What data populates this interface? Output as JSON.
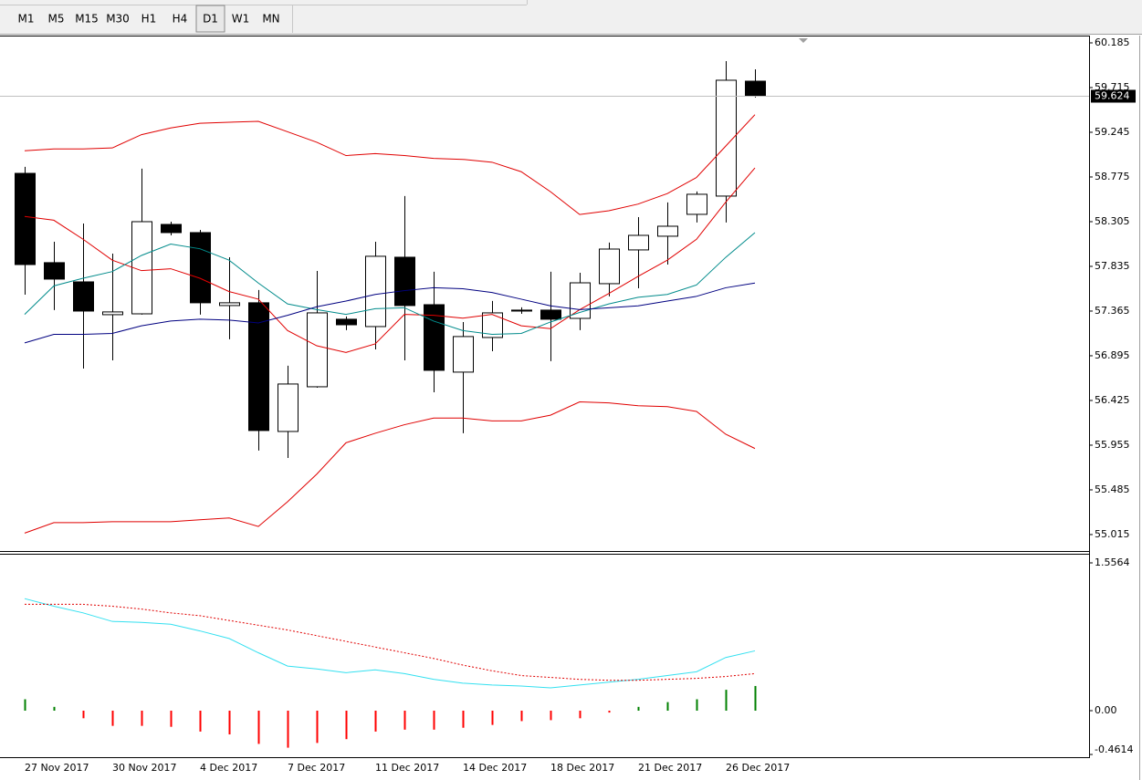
{
  "toolbar": {
    "timeframes": [
      "M1",
      "M5",
      "M15",
      "M30",
      "H1",
      "H4",
      "D1",
      "W1",
      "MN"
    ],
    "active": 6
  },
  "chart_data": [
    {
      "type": "candlestick",
      "ylim": [
        54.842,
        60.252
      ],
      "yticks": [
        60.185,
        59.715,
        59.245,
        58.775,
        58.305,
        57.835,
        57.365,
        56.895,
        56.425,
        55.955,
        55.485,
        55.015
      ],
      "current_price": 59.624,
      "up_color": "#ffffff",
      "down_color": "#000000",
      "open": [
        58.813,
        57.874,
        57.672,
        57.327,
        57.336,
        58.276,
        58.19,
        57.423,
        57.452,
        56.099,
        56.569,
        57.279,
        57.202,
        57.931,
        57.432,
        56.723,
        57.087,
        57.375,
        57.375,
        57.288,
        57.653,
        58.008,
        58.152,
        58.382,
        58.574,
        59.782
      ],
      "high": [
        58.881,
        58.094,
        58.286,
        57.969,
        58.862,
        58.305,
        58.219,
        57.931,
        57.586,
        56.79,
        57.787,
        57.308,
        58.094,
        58.574,
        57.778,
        57.25,
        57.471,
        57.404,
        57.778,
        57.768,
        58.085,
        58.353,
        58.507,
        58.622,
        59.993,
        59.907
      ],
      "low": [
        57.538,
        57.375,
        56.761,
        56.847,
        57.327,
        58.161,
        57.327,
        57.068,
        55.898,
        55.821,
        56.559,
        57.164,
        56.962,
        56.847,
        56.511,
        56.08,
        56.943,
        57.336,
        56.838,
        57.164,
        57.519,
        57.605,
        57.854,
        58.296,
        58.296,
        59.61
      ],
      "close": [
        57.854,
        57.701,
        57.365,
        57.356,
        58.305,
        58.19,
        57.452,
        57.452,
        56.109,
        56.598,
        57.346,
        57.221,
        57.941,
        57.423,
        56.742,
        57.097,
        57.346,
        57.365,
        57.279,
        57.662,
        58.017,
        58.161,
        58.257,
        58.593,
        59.792,
        59.624
      ],
      "series": [
        {
          "color": "#e00000",
          "values": [
            59.05,
            59.07,
            59.07,
            59.08,
            59.22,
            59.29,
            59.34,
            59.35,
            59.36,
            59.25,
            59.14,
            59.0,
            59.02,
            59.0,
            58.97,
            58.96,
            58.93,
            58.83,
            58.62,
            58.38,
            58.42,
            58.49,
            58.6,
            58.77,
            59.1,
            59.43
          ]
        },
        {
          "color": "#e00000",
          "values": [
            55.03,
            55.14,
            55.14,
            55.15,
            55.15,
            55.15,
            55.17,
            55.19,
            55.1,
            55.36,
            55.65,
            55.98,
            56.08,
            56.17,
            56.24,
            56.24,
            56.21,
            56.21,
            56.27,
            56.41,
            56.4,
            56.37,
            56.36,
            56.31,
            56.07,
            55.92
          ]
        },
        {
          "color": "#e00000",
          "values": [
            58.36,
            58.32,
            58.12,
            57.9,
            57.79,
            57.81,
            57.71,
            57.57,
            57.49,
            57.16,
            57.0,
            56.93,
            57.02,
            57.33,
            57.32,
            57.29,
            57.33,
            57.21,
            57.18,
            57.38,
            57.55,
            57.73,
            57.9,
            58.12,
            58.51,
            58.87
          ]
        },
        {
          "color": "#008b8b",
          "values": [
            57.33,
            57.63,
            57.71,
            57.78,
            57.95,
            58.07,
            58.02,
            57.9,
            57.66,
            57.44,
            57.38,
            57.33,
            57.39,
            57.4,
            57.26,
            57.16,
            57.12,
            57.13,
            57.25,
            57.35,
            57.44,
            57.51,
            57.54,
            57.64,
            57.93,
            58.19
          ]
        },
        {
          "color": "#000080",
          "values": [
            57.03,
            57.12,
            57.12,
            57.13,
            57.21,
            57.26,
            57.28,
            57.27,
            57.24,
            57.32,
            57.41,
            57.47,
            57.54,
            57.58,
            57.61,
            57.6,
            57.56,
            57.49,
            57.42,
            57.38,
            57.4,
            57.42,
            57.47,
            57.52,
            57.61,
            57.66
          ]
        }
      ]
    },
    {
      "type": "oscillator",
      "ylim": [
        -0.49,
        1.643
      ],
      "yticks": [
        1.5564,
        {
          "value": 0,
          "label": "0.00"
        },
        -0.4614
      ],
      "categories": [
        "27 Nov 2017",
        null,
        null,
        "30 Nov 2017",
        null,
        null,
        "4 Dec 2017",
        null,
        null,
        "7 Dec 2017",
        null,
        null,
        "11 Dec 2017",
        null,
        null,
        "14 Dec 2017",
        null,
        null,
        "18 Dec 2017",
        null,
        null,
        "21 Dec 2017",
        null,
        null,
        "26 Dec 2017",
        null
      ],
      "series": [
        {
          "color": "#33e0f0",
          "dashed": false,
          "values": [
            1.18,
            1.1,
            1.03,
            0.94,
            0.93,
            0.91,
            0.84,
            0.76,
            0.61,
            0.47,
            0.44,
            0.4,
            0.43,
            0.39,
            0.33,
            0.29,
            0.27,
            0.26,
            0.24,
            0.27,
            0.3,
            0.33,
            0.37,
            0.41,
            0.56,
            0.63
          ]
        },
        {
          "color": "#e00000",
          "dashed": true,
          "values": [
            1.12,
            1.12,
            1.12,
            1.1,
            1.07,
            1.03,
            1.0,
            0.95,
            0.9,
            0.85,
            0.79,
            0.73,
            0.67,
            0.61,
            0.55,
            0.48,
            0.42,
            0.37,
            0.35,
            0.33,
            0.32,
            0.32,
            0.33,
            0.34,
            0.36,
            0.39
          ]
        }
      ],
      "histogram": {
        "up_color": "#008000",
        "down_color": "#ff0000",
        "values": [
          0.12,
          0.04,
          -0.08,
          -0.16,
          -0.16,
          -0.17,
          -0.22,
          -0.25,
          -0.35,
          -0.39,
          -0.34,
          -0.3,
          -0.22,
          -0.2,
          -0.2,
          -0.18,
          -0.15,
          -0.11,
          -0.1,
          -0.08,
          -0.02,
          0.04,
          0.09,
          0.12,
          0.22,
          0.26
        ]
      }
    }
  ]
}
